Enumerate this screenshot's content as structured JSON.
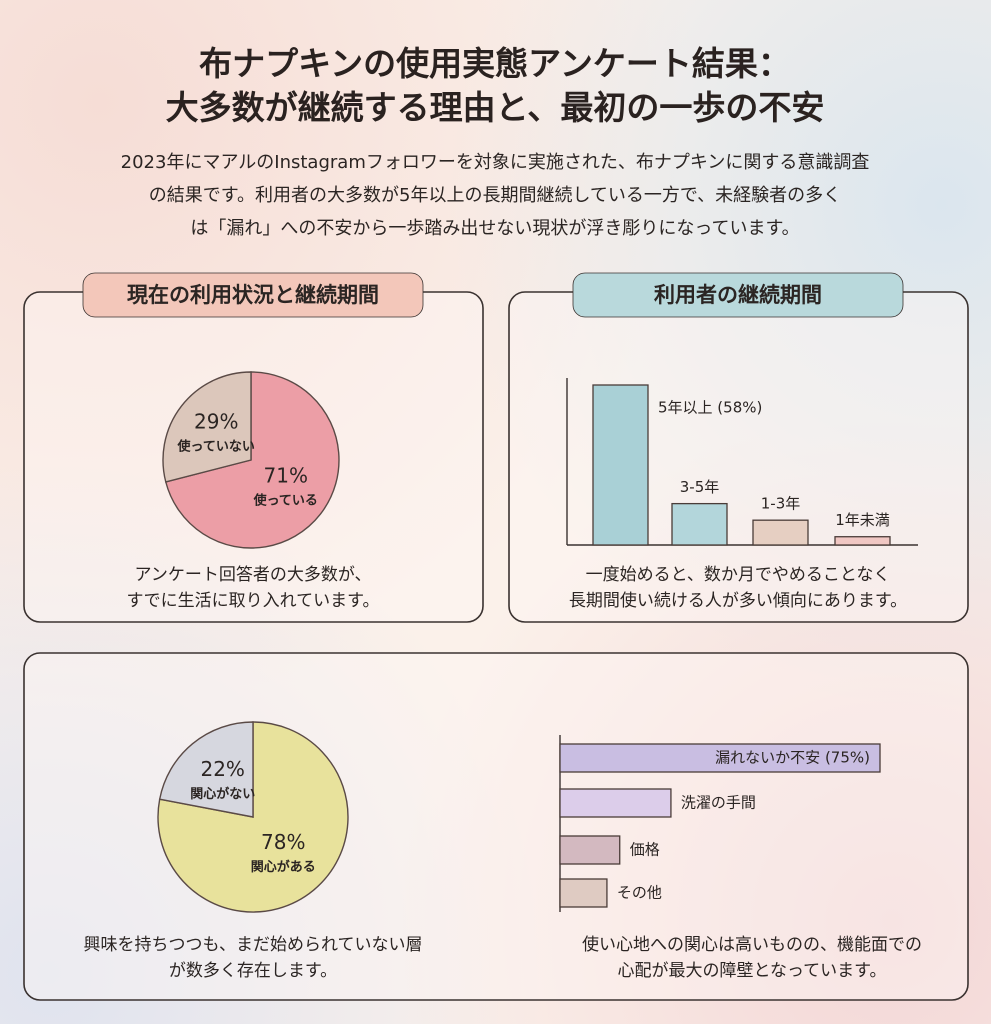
{
  "title_lines": [
    "布ナプキンの使用実態アンケート結果：",
    "大多数が継続する理由と、最初の一歩の不安"
  ],
  "description_lines": [
    "2023年にマアルのInstagramフォロワーを対象に実施された、布ナプキンに関する意識調査",
    "の結果です。利用者の大多数が5年以上の長期間継続している一方で、未経験者の多く",
    "は「漏れ」への不安から一歩踏み出せない現状が浮き彫りになっています。"
  ],
  "chart_data": [
    {
      "type": "pie",
      "title": "現在の利用状況と継続期間",
      "title_color": "#f3c7ba",
      "labels": [
        "使っている",
        "使っていない"
      ],
      "values": [
        71,
        29
      ],
      "value_labels": [
        "71%",
        "29%"
      ],
      "colors": [
        "#ec9ea6",
        "#dcc7bb"
      ],
      "caption_lines": [
        "アンケート回答者の大多数が、",
        "すでに生活に取り入れています。"
      ]
    },
    {
      "type": "bar",
      "title": "利用者の継続期間",
      "title_color": "#b9d9dc",
      "orientation": "vertical",
      "categories": [
        "5年以上 (58%)",
        "3-5年",
        "1-3年",
        "1年未満"
      ],
      "values": [
        58,
        15,
        9,
        3
      ],
      "colors": [
        "#a9d0d6",
        "#b3d6db",
        "#e6cfc2",
        "#f0c7c3"
      ],
      "caption_lines": [
        "一度始めると、数か月でやめることなく",
        "長期間使い続ける人が多い傾向にあります。"
      ]
    },
    {
      "type": "pie",
      "labels": [
        "関心がある",
        "関心がない"
      ],
      "values": [
        78,
        22
      ],
      "value_labels": [
        "78%",
        "22%"
      ],
      "colors": [
        "#e8e29c",
        "#d6d7df"
      ],
      "caption_lines": [
        "興味を持ちつつも、まだ始められていない層",
        "が数多く存在します。"
      ]
    },
    {
      "type": "bar",
      "orientation": "horizontal",
      "categories": [
        "漏れないか不安 (75%)",
        "洗濯の手間",
        "価格",
        "その他"
      ],
      "values": [
        75,
        26,
        14,
        11
      ],
      "colors": [
        "#c9bee2",
        "#dccdea",
        "#d3b9c0",
        "#dfcbc2"
      ],
      "caption_lines": [
        "使い心地への関心は高いものの、機能面での",
        "心配が最大の障壁となっています。"
      ]
    }
  ]
}
